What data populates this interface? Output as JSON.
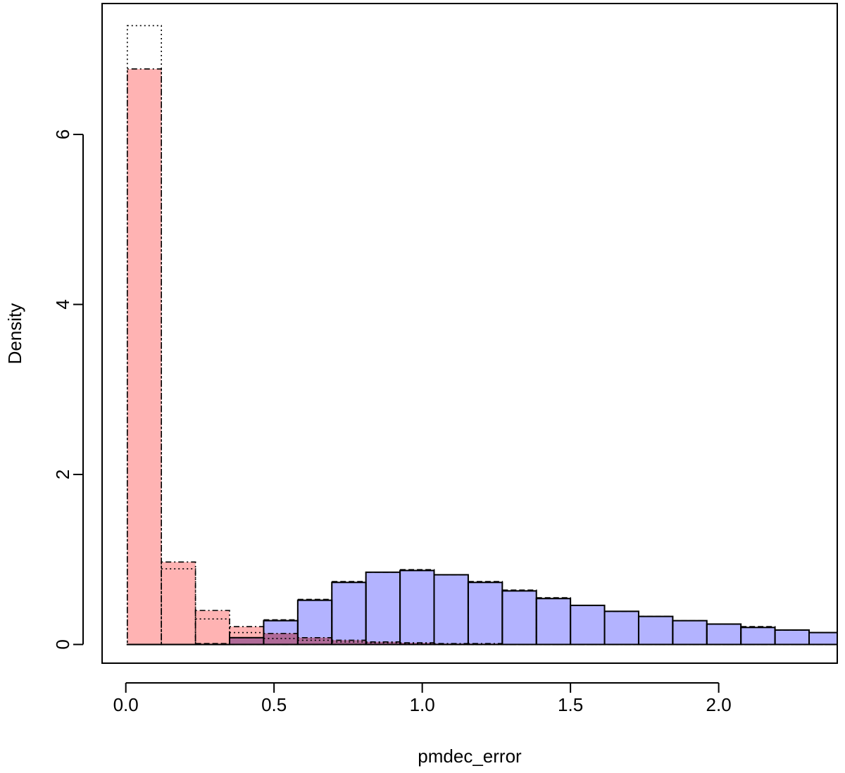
{
  "chart_data": {
    "type": "bar",
    "title": "",
    "xlabel": "pmdec_error",
    "ylabel": "Density",
    "xlim": [
      -0.08,
      2.4
    ],
    "ylim": [
      -0.22,
      7.54
    ],
    "xticks": [
      0.0,
      0.5,
      1.0,
      1.5,
      2.0
    ],
    "xtick_labels": [
      "0.0",
      "0.5",
      "1.0",
      "1.5",
      "2.0"
    ],
    "yticks": [
      0,
      2,
      4,
      6
    ],
    "ytick_labels": [
      "0",
      "2",
      "4",
      "6"
    ],
    "grid": false,
    "legend": "none",
    "bin_edges": [
      0.005,
      0.12,
      0.235,
      0.35,
      0.465,
      0.58,
      0.695,
      0.81,
      0.925,
      1.04,
      1.155,
      1.27,
      1.385,
      1.5,
      1.615,
      1.73,
      1.845,
      1.96,
      2.075,
      2.19,
      2.305,
      2.42
    ],
    "series": [
      {
        "color": "#b3b3ff",
        "line_style": "solid",
        "values": [
          0.0,
          0.0,
          0.0,
          0.08,
          0.28,
          0.52,
          0.73,
          0.85,
          0.87,
          0.82,
          0.73,
          0.63,
          0.54,
          0.46,
          0.39,
          0.33,
          0.28,
          0.24,
          0.2,
          0.17,
          0.14
        ]
      },
      {
        "color": "none",
        "line_style": "dashed",
        "values": [
          0.0,
          0.0,
          0.01,
          0.08,
          0.29,
          0.53,
          0.74,
          0.85,
          0.88,
          0.82,
          0.74,
          0.64,
          0.55,
          0.46,
          0.39,
          0.33,
          0.28,
          0.24,
          0.21,
          0.17,
          0.14
        ]
      },
      {
        "color": "#ffb3b3",
        "line_style": "dotdash",
        "values": [
          6.77,
          0.97,
          0.4,
          0.21,
          0.13,
          0.08,
          0.05,
          0.03,
          0.02,
          0.01,
          0.01,
          0.0,
          0.0,
          0.0,
          0.0,
          0.0,
          0.0,
          0.0,
          0.0,
          0.0,
          0.0
        ]
      },
      {
        "color": "none",
        "line_style": "dotted",
        "values": [
          7.28,
          0.89,
          0.3,
          0.14,
          0.07,
          0.05,
          0.03,
          0.02,
          0.01,
          0.0,
          0.0,
          0.0,
          0.0,
          0.0,
          0.0,
          0.0,
          0.0,
          0.0,
          0.0,
          0.0,
          0.0
        ]
      }
    ],
    "overlap_color": "#b06a98"
  }
}
